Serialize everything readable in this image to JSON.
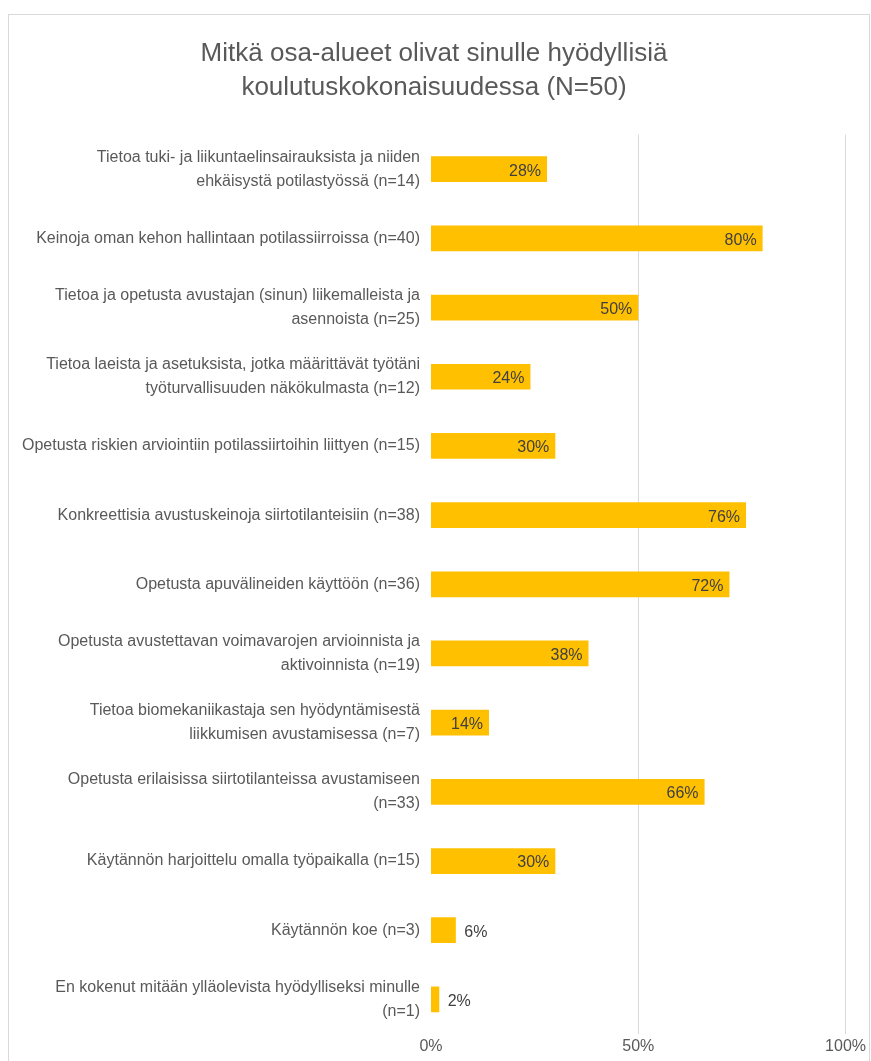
{
  "chart_data": {
    "type": "bar",
    "orientation": "horizontal",
    "title": "Mitkä osa-alueet olivat sinulle hyödyllisiä koulutuskokonaisuudessa (N=50)",
    "categories": [
      "Tietoa tuki- ja liikuntaelinsairauksista ja niiden ehkäisystä potilastyössä (n=14)",
      "Keinoja oman kehon hallintaan potilassiirroissa (n=40)",
      "Tietoa ja opetusta avustajan (sinun) liikemalleista ja asennoista (n=25)",
      "Tietoa laeista ja asetuksista, jotka määrittävät työtäni työturvallisuuden näkökulmasta (n=12)",
      "Opetusta riskien arviointiin potilassiirtoihin liittyen (n=15)",
      "Konkreettisia avustuskeinoja siirtotilanteisiin (n=38)",
      "Opetusta apuvälineiden käyttöön (n=36)",
      "Opetusta avustettavan voimavarojen arvioinnista ja aktivoinnista (n=19)",
      "Tietoa biomekaniikastaja sen hyödyntämisestä liikkumisen avustamisessa (n=7)",
      "Opetusta erilaisissa siirtotilanteissa avustamiseen (n=33)",
      "Käytännön harjoittelu omalla työpaikalla (n=15)",
      "Käytännön koe (n=3)",
      "En kokenut mitään ylläolevista hyödylliseksi minulle (n=1)"
    ],
    "values": [
      28,
      80,
      50,
      24,
      30,
      76,
      72,
      38,
      14,
      66,
      30,
      6,
      2
    ],
    "value_labels": [
      "28%",
      "80%",
      "50%",
      "24%",
      "30%",
      "76%",
      "72%",
      "38%",
      "14%",
      "66%",
      "30%",
      "6%",
      "2%"
    ],
    "color": "#ffc000",
    "xlim": [
      0,
      100
    ],
    "xticks": [
      {
        "value": 0,
        "label": "0%"
      },
      {
        "value": 50,
        "label": "50%"
      },
      {
        "value": 100,
        "label": "100%"
      }
    ],
    "grid": "x",
    "legend": false
  }
}
